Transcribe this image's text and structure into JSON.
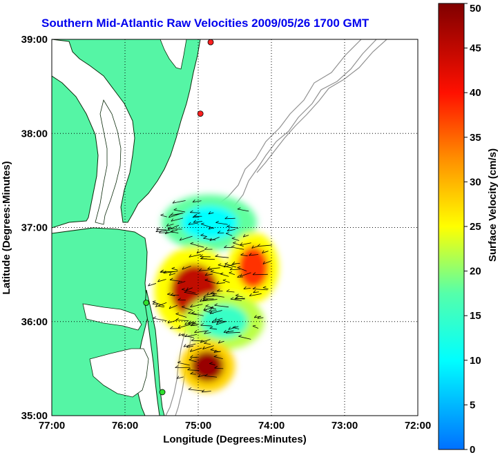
{
  "chart_data": {
    "type": "heatmap",
    "title": "Southern Mid-Atlantic Raw Velocities 2009/05/26 1700 GMT",
    "xlabel": "Longitude (Degrees:Minutes)",
    "ylabel": "Latitude (Degrees:Minutes)",
    "x_ticks": [
      {
        "value": -77,
        "label": "77:00"
      },
      {
        "value": -76,
        "label": "76:00"
      },
      {
        "value": -75,
        "label": "75:00"
      },
      {
        "value": -74,
        "label": "74:00"
      },
      {
        "value": -73,
        "label": "73:00"
      },
      {
        "value": -72,
        "label": "72:00"
      }
    ],
    "y_ticks": [
      {
        "value": 35,
        "label": "35:00"
      },
      {
        "value": 36,
        "label": "36:00"
      },
      {
        "value": 37,
        "label": "37:00"
      },
      {
        "value": 38,
        "label": "38:00"
      },
      {
        "value": 39,
        "label": "39:00"
      }
    ],
    "xlim": [
      -77,
      -72
    ],
    "ylim": [
      35,
      39
    ],
    "grid": true,
    "colorbar": {
      "label": "Surface Velocity (cm/s)",
      "range": [
        0,
        50
      ],
      "ticks": [
        {
          "value": 0,
          "label": "0"
        },
        {
          "value": 5,
          "label": "5"
        },
        {
          "value": 10,
          "label": "10"
        },
        {
          "value": 15,
          "label": "15"
        },
        {
          "value": 20,
          "label": "20"
        },
        {
          "value": 25,
          "label": "25"
        },
        {
          "value": 30,
          "label": "30"
        },
        {
          "value": 35,
          "label": "35"
        },
        {
          "value": 40,
          "label": "40"
        },
        {
          "value": 45,
          "label": "45"
        },
        {
          "value": 50,
          "label": "50"
        }
      ]
    },
    "stations": [
      {
        "lon": -74.83,
        "lat": 38.97,
        "color": "#ff2020"
      },
      {
        "lon": -74.97,
        "lat": 38.21,
        "color": "#ff2020"
      },
      {
        "lon": -75.71,
        "lat": 36.2,
        "color": "#30e030"
      },
      {
        "lon": -75.49,
        "lat": 35.25,
        "color": "#30e030"
      }
    ],
    "velocity_regions": [
      {
        "name": "north",
        "lon": [
          -75.5,
          -74.2
        ],
        "lat": [
          36.75,
          37.35
        ],
        "speed_center": 10,
        "speed_edge": 18
      },
      {
        "name": "middle",
        "lon": [
          -74.6,
          -73.9
        ],
        "lat": [
          36.2,
          36.95
        ],
        "speed_center": 38,
        "speed_edge": 25
      },
      {
        "name": "southwest",
        "lon": [
          -75.6,
          -74.5
        ],
        "lat": [
          35.85,
          36.8
        ],
        "speed_center": 45,
        "speed_edge": 25
      },
      {
        "name": "southeast",
        "lon": [
          -75.2,
          -74.1
        ],
        "lat": [
          35.7,
          36.3
        ],
        "speed_center": 15,
        "speed_edge": 22
      },
      {
        "name": "cape",
        "lon": [
          -75.25,
          -74.5
        ],
        "lat": [
          35.25,
          35.8
        ],
        "speed_center": 48,
        "speed_edge": 28
      }
    ]
  },
  "colors": {
    "land": "#55f5a5",
    "coast": "#0a2a0a",
    "bathy": "#909090",
    "title": "#0000ee"
  }
}
